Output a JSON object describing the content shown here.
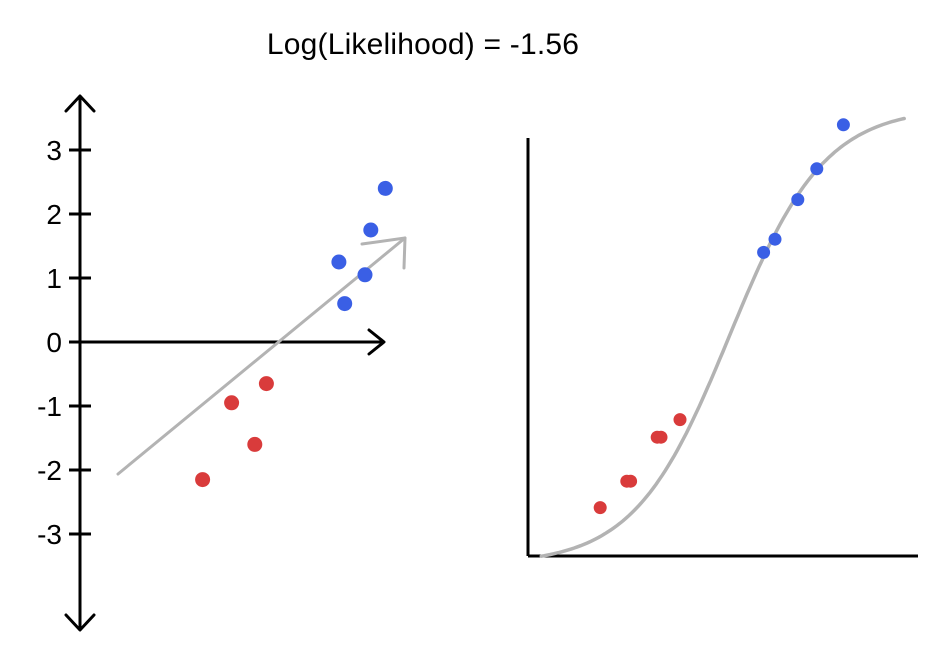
{
  "chart_data": [
    {
      "type": "scatter",
      "title": "Log(Likelihood) = -1.56",
      "xlabel": "",
      "ylabel": "",
      "ylim": [
        -3,
        3
      ],
      "y_ticks": [
        {
          "value": 3,
          "label": "3"
        },
        {
          "value": 2,
          "label": "2"
        },
        {
          "value": 1,
          "label": "1"
        },
        {
          "value": 0,
          "label": "0"
        },
        {
          "value": -1,
          "label": "-1"
        },
        {
          "value": -2,
          "label": "-2"
        },
        {
          "value": -3,
          "label": "-3"
        }
      ],
      "grid": false,
      "arrow_axes": true,
      "projection_arrow": {
        "color": "#b3b3b3"
      },
      "series": [
        {
          "color": "#3a5fe5",
          "points": [
            {
              "x": 1.05,
              "y": 1.25
            },
            {
              "x": 1.15,
              "y": 0.6
            },
            {
              "x": 1.5,
              "y": 1.05
            },
            {
              "x": 1.6,
              "y": 1.75
            },
            {
              "x": 1.85,
              "y": 2.4
            }
          ]
        },
        {
          "color": "#d93b3b",
          "points": [
            {
              "x": -1.3,
              "y": -2.15
            },
            {
              "x": -0.8,
              "y": -0.95
            },
            {
              "x": -0.4,
              "y": -1.6
            },
            {
              "x": -0.2,
              "y": -0.65
            }
          ]
        }
      ]
    },
    {
      "type": "line",
      "xlabel": "",
      "ylabel": "",
      "xlim": [
        0,
        1
      ],
      "ylim": [
        0,
        1
      ],
      "grid": false,
      "curve": {
        "kind": "sigmoid",
        "color": "#b3b3b3"
      },
      "series": [
        {
          "color": "#d93b3b",
          "points": [
            {
              "x": 0.19,
              "y": 0.11
            },
            {
              "x": 0.26,
              "y": 0.17
            },
            {
              "x": 0.27,
              "y": 0.17
            },
            {
              "x": 0.34,
              "y": 0.27
            },
            {
              "x": 0.35,
              "y": 0.27
            },
            {
              "x": 0.4,
              "y": 0.31
            }
          ]
        },
        {
          "color": "#3a5fe5",
          "points": [
            {
              "x": 0.62,
              "y": 0.69
            },
            {
              "x": 0.65,
              "y": 0.72
            },
            {
              "x": 0.71,
              "y": 0.81
            },
            {
              "x": 0.76,
              "y": 0.88
            },
            {
              "x": 0.83,
              "y": 0.98
            }
          ]
        }
      ]
    }
  ]
}
